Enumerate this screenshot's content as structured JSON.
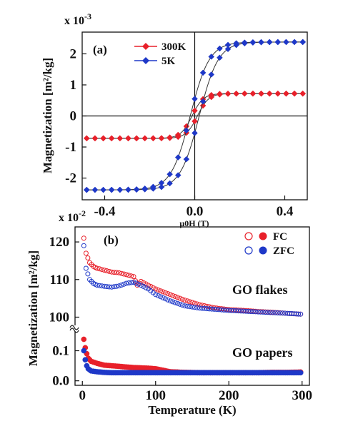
{
  "chart_data": [
    {
      "panel_label": "(a)",
      "type": "line",
      "ylabel": "Magnetization [m²/kg]",
      "y_multiplier": "x 10",
      "y_multiplier_exp": "-3",
      "xlabel": "μ0H (T)",
      "xlim": [
        -0.5,
        0.5
      ],
      "ylim": [
        -2.7,
        2.7
      ],
      "xticks": [
        -0.4,
        0.0,
        0.4
      ],
      "xtick_labels": [
        "-0.4",
        "0.0",
        "0.4"
      ],
      "yticks": [
        -2,
        -1,
        0,
        1,
        2
      ],
      "ytick_labels": [
        "-2",
        "-1",
        "0",
        "1",
        "2"
      ],
      "legend_position": "top-left",
      "series": [
        {
          "name": "300K",
          "color": "#e8202a",
          "marker": "diamond",
          "saturation": 0.72,
          "coercive_field": 0.012,
          "width": 0.05
        },
        {
          "name": "5K",
          "color": "#1e38c8",
          "marker": "diamond",
          "saturation": 2.38,
          "coercive_field": 0.02,
          "width": 0.085
        }
      ]
    },
    {
      "panel_label": "(b)",
      "type": "scatter",
      "ylabel": "Magnetization [m²/kg]",
      "y_multiplier": "x 10",
      "y_multiplier_exp": "-2",
      "xlabel": "Temperature (K)",
      "xlim": [
        -10,
        310
      ],
      "xticks": [
        0,
        100,
        200,
        300
      ],
      "xtick_labels": [
        "0",
        "100",
        "200",
        "300"
      ],
      "upper_ylim": [
        98,
        124
      ],
      "upper_yticks": [
        100,
        110,
        120
      ],
      "upper_ytick_labels": [
        "100",
        "110",
        "120"
      ],
      "lower_ylim": [
        -0.015,
        0.17
      ],
      "lower_yticks": [
        0.0,
        0.1
      ],
      "lower_ytick_labels": [
        "0.0",
        "0.1"
      ],
      "legend_position": "top-right",
      "legend": [
        {
          "label": "FC",
          "color": "#e8202a"
        },
        {
          "label": "ZFC",
          "color": "#1e38c8"
        }
      ],
      "annotations": [
        "GO flakes",
        "GO papers"
      ],
      "series": [
        {
          "name": "GO flakes FC",
          "color": "#e8202a",
          "marker": "open-circle",
          "points": [
            [
              2,
              121
            ],
            [
              5,
              117
            ],
            [
              10,
              114.5
            ],
            [
              15,
              113.5
            ],
            [
              20,
              113
            ],
            [
              30,
              112.5
            ],
            [
              40,
              112
            ],
            [
              50,
              111.8
            ],
            [
              60,
              111.3
            ],
            [
              70,
              110.8
            ],
            [
              75,
              108.5
            ],
            [
              80,
              109.5
            ],
            [
              90,
              108.5
            ],
            [
              100,
              107.5
            ],
            [
              120,
              106
            ],
            [
              140,
              104.5
            ],
            [
              160,
              103.3
            ],
            [
              180,
              102.5
            ],
            [
              200,
              102
            ],
            [
              220,
              101.8
            ],
            [
              240,
              101.5
            ],
            [
              260,
              101.3
            ],
            [
              280,
              101
            ],
            [
              298,
              100.8
            ]
          ]
        },
        {
          "name": "GO flakes ZFC",
          "color": "#1e38c8",
          "marker": "open-circle",
          "points": [
            [
              2,
              119
            ],
            [
              5,
              113
            ],
            [
              10,
              110
            ],
            [
              15,
              109
            ],
            [
              20,
              108.5
            ],
            [
              30,
              108.2
            ],
            [
              40,
              108
            ],
            [
              50,
              108.3
            ],
            [
              60,
              109
            ],
            [
              70,
              109.3
            ],
            [
              80,
              108.5
            ],
            [
              90,
              107.5
            ],
            [
              100,
              106
            ],
            [
              120,
              104.3
            ],
            [
              140,
              103
            ],
            [
              160,
              102.4
            ],
            [
              180,
              102.1
            ],
            [
              200,
              101.8
            ],
            [
              220,
              101.6
            ],
            [
              240,
              101.4
            ],
            [
              260,
              101.2
            ],
            [
              280,
              101
            ],
            [
              298,
              100.8
            ]
          ]
        },
        {
          "name": "GO papers FC",
          "color": "#e8202a",
          "marker": "filled-circle",
          "points": [
            [
              2,
              0.138
            ],
            [
              4,
              0.11
            ],
            [
              6,
              0.09
            ],
            [
              8,
              0.075
            ],
            [
              12,
              0.065
            ],
            [
              20,
              0.058
            ],
            [
              30,
              0.052
            ],
            [
              40,
              0.05
            ],
            [
              50,
              0.048
            ],
            [
              60,
              0.046
            ],
            [
              70,
              0.044
            ],
            [
              80,
              0.043
            ],
            [
              90,
              0.042
            ],
            [
              100,
              0.04
            ],
            [
              110,
              0.035
            ],
            [
              120,
              0.03
            ],
            [
              140,
              0.028
            ],
            [
              160,
              0.027
            ],
            [
              180,
              0.027
            ],
            [
              200,
              0.027
            ],
            [
              220,
              0.027
            ],
            [
              240,
              0.027
            ],
            [
              260,
              0.028
            ],
            [
              280,
              0.028
            ],
            [
              298,
              0.029
            ]
          ]
        },
        {
          "name": "GO papers ZFC",
          "color": "#1e38c8",
          "marker": "filled-circle",
          "points": [
            [
              2,
              0.1
            ],
            [
              4,
              0.07
            ],
            [
              6,
              0.05
            ],
            [
              8,
              0.04
            ],
            [
              12,
              0.033
            ],
            [
              20,
              0.03
            ],
            [
              30,
              0.028
            ],
            [
              40,
              0.027
            ],
            [
              60,
              0.027
            ],
            [
              80,
              0.027
            ],
            [
              100,
              0.027
            ],
            [
              120,
              0.027
            ],
            [
              140,
              0.027
            ],
            [
              160,
              0.027
            ],
            [
              180,
              0.027
            ],
            [
              200,
              0.027
            ],
            [
              220,
              0.027
            ],
            [
              240,
              0.027
            ],
            [
              260,
              0.027
            ],
            [
              280,
              0.027
            ],
            [
              298,
              0.027
            ]
          ]
        }
      ]
    }
  ]
}
